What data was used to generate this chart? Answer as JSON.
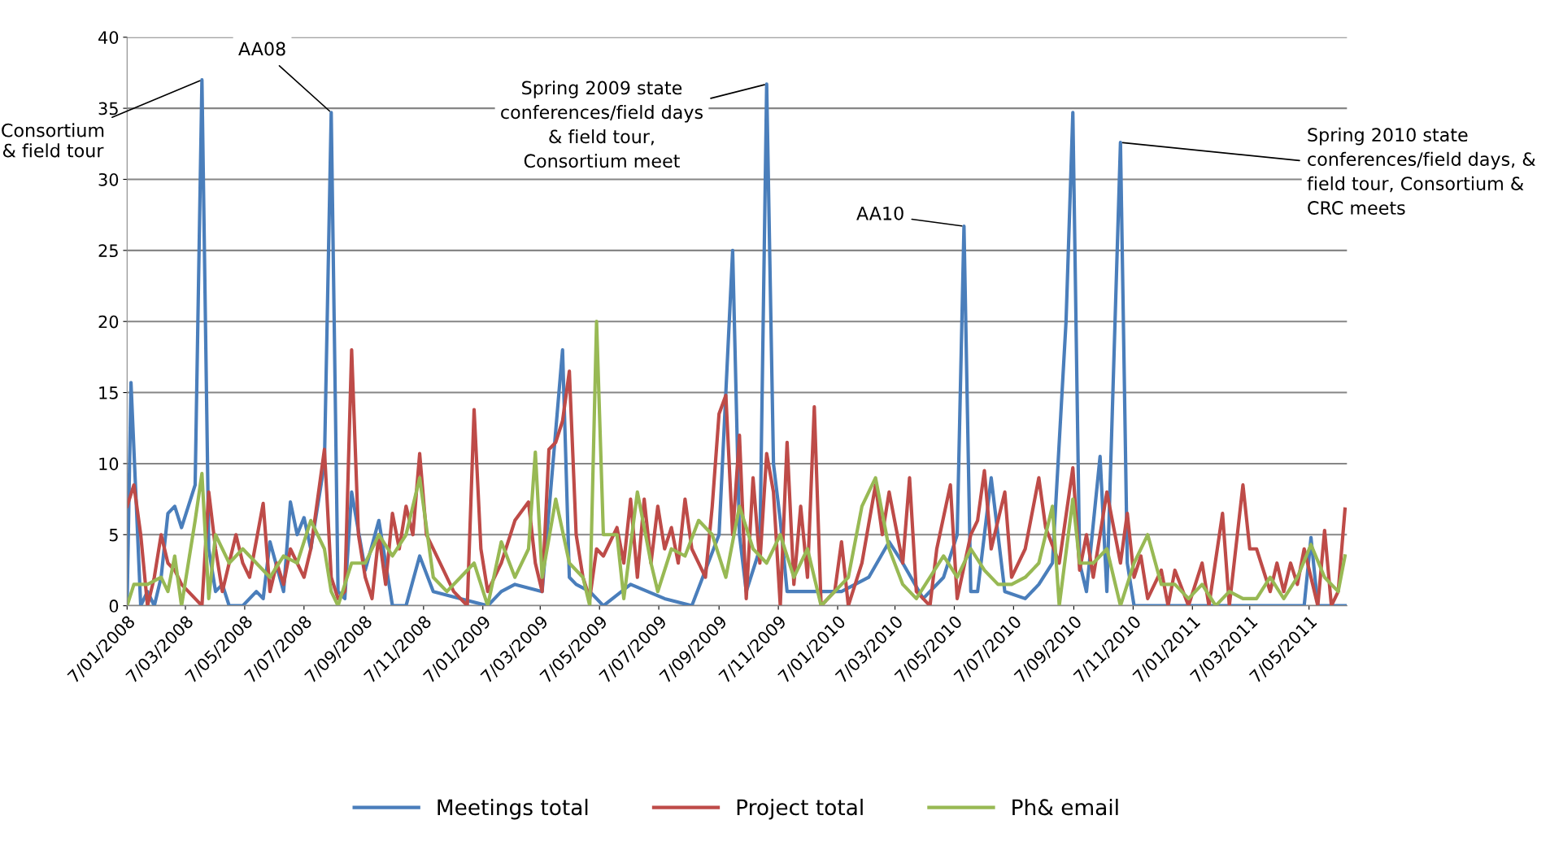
{
  "chart_data": {
    "type": "line",
    "xlim": [
      "2008-01-07",
      "2011-06-15"
    ],
    "xticks": [
      {
        "value": "2008-01-07",
        "label": "7/01/2008"
      },
      {
        "value": "2008-03-07",
        "label": "7/03/2008"
      },
      {
        "value": "2008-05-07",
        "label": "7/05/2008"
      },
      {
        "value": "2008-07-07",
        "label": "7/07/2008"
      },
      {
        "value": "2008-09-07",
        "label": "7/09/2008"
      },
      {
        "value": "2008-11-07",
        "label": "7/11/2008"
      },
      {
        "value": "2009-01-07",
        "label": "7/01/2009"
      },
      {
        "value": "2009-03-07",
        "label": "7/03/2009"
      },
      {
        "value": "2009-05-07",
        "label": "7/05/2009"
      },
      {
        "value": "2009-07-07",
        "label": "7/07/2009"
      },
      {
        "value": "2009-09-07",
        "label": "7/09/2009"
      },
      {
        "value": "2009-11-07",
        "label": "7/11/2009"
      },
      {
        "value": "2010-01-07",
        "label": "7/01/2010"
      },
      {
        "value": "2010-03-07",
        "label": "7/03/2010"
      },
      {
        "value": "2010-05-07",
        "label": "7/05/2010"
      },
      {
        "value": "2010-07-07",
        "label": "7/07/2010"
      },
      {
        "value": "2010-09-07",
        "label": "7/09/2010"
      },
      {
        "value": "2010-11-07",
        "label": "7/11/2010"
      },
      {
        "value": "2011-01-07",
        "label": "7/01/2011"
      },
      {
        "value": "2011-03-07",
        "label": "7/03/2011"
      },
      {
        "value": "2011-05-07",
        "label": "7/05/2011"
      }
    ],
    "ylim": [
      0,
      40
    ],
    "yticks": [
      0,
      5,
      10,
      15,
      20,
      25,
      30,
      35,
      40
    ],
    "grid": "y",
    "legend": "bottom",
    "marker": "none",
    "line_style": "solid",
    "series": [
      {
        "name": "Meetings total",
        "color": "#4a7ebb",
        "x": [
          "2008-01-07",
          "2008-01-11",
          "2008-01-21",
          "2008-01-28",
          "2008-02-04",
          "2008-02-11",
          "2008-02-18",
          "2008-02-25",
          "2008-03-03",
          "2008-03-10",
          "2008-03-17",
          "2008-03-24",
          "2008-03-31",
          "2008-04-07",
          "2008-04-14",
          "2008-04-21",
          "2008-05-05",
          "2008-05-19",
          "2008-05-26",
          "2008-06-02",
          "2008-06-16",
          "2008-06-23",
          "2008-06-30",
          "2008-07-07",
          "2008-07-14",
          "2008-07-28",
          "2008-08-04",
          "2008-08-11",
          "2008-08-18",
          "2008-08-25",
          "2008-09-08",
          "2008-09-22",
          "2008-10-06",
          "2008-10-20",
          "2008-11-03",
          "2008-11-17",
          "2008-12-15",
          "2009-01-12",
          "2009-01-26",
          "2009-02-09",
          "2009-03-09",
          "2009-03-30",
          "2009-04-06",
          "2009-04-13",
          "2009-04-27",
          "2009-05-11",
          "2009-06-08",
          "2009-07-13",
          "2009-08-10",
          "2009-09-07",
          "2009-09-21",
          "2009-09-28",
          "2009-10-05",
          "2009-10-19",
          "2009-10-26",
          "2009-11-02",
          "2009-11-09",
          "2009-11-16",
          "2009-12-14",
          "2010-01-11",
          "2010-02-08",
          "2010-03-01",
          "2010-03-15",
          "2010-04-05",
          "2010-04-26",
          "2010-05-10",
          "2010-05-17",
          "2010-05-24",
          "2010-05-31",
          "2010-06-14",
          "2010-06-28",
          "2010-07-19",
          "2010-08-02",
          "2010-08-16",
          "2010-08-30",
          "2010-09-06",
          "2010-09-13",
          "2010-09-20",
          "2010-10-04",
          "2010-10-11",
          "2010-10-25",
          "2010-11-01",
          "2010-11-08",
          "2011-05-02",
          "2011-05-09",
          "2011-05-16",
          "2011-06-13"
        ],
        "values": [
          0,
          15.7,
          0,
          1,
          0,
          2,
          6.5,
          7,
          5.5,
          7,
          8.5,
          37,
          4,
          1,
          1.5,
          0,
          0,
          1,
          0.5,
          4.5,
          1,
          7.3,
          5,
          6.2,
          4,
          10,
          34.7,
          1,
          0.5,
          8,
          2.5,
          6,
          0,
          0,
          3.5,
          1,
          0.5,
          0,
          1,
          1.5,
          1,
          18,
          2,
          1.5,
          1,
          0,
          1.5,
          0.5,
          0,
          5,
          25,
          5,
          1,
          4,
          36.7,
          10,
          6,
          1,
          1,
          1,
          2,
          4.5,
          3,
          0.5,
          2,
          5,
          26.7,
          1,
          1,
          9,
          1,
          0.5,
          1.5,
          3,
          20,
          34.7,
          3,
          1,
          10.5,
          1,
          32.6,
          3,
          0,
          0,
          4.8,
          0,
          0
        ]
      },
      {
        "name": "Project total",
        "color": "#be4b48",
        "x": [
          "2008-01-07",
          "2008-01-14",
          "2008-01-21",
          "2008-01-28",
          "2008-02-04",
          "2008-02-11",
          "2008-02-18",
          "2008-02-25",
          "2008-03-03",
          "2008-03-17",
          "2008-03-24",
          "2008-03-31",
          "2008-04-07",
          "2008-04-14",
          "2008-04-28",
          "2008-05-05",
          "2008-05-12",
          "2008-05-26",
          "2008-06-02",
          "2008-06-09",
          "2008-06-16",
          "2008-06-23",
          "2008-07-07",
          "2008-07-14",
          "2008-07-28",
          "2008-08-04",
          "2008-08-11",
          "2008-08-18",
          "2008-08-25",
          "2008-09-01",
          "2008-09-08",
          "2008-09-15",
          "2008-09-22",
          "2008-09-29",
          "2008-10-06",
          "2008-10-13",
          "2008-10-20",
          "2008-10-27",
          "2008-11-03",
          "2008-11-10",
          "2008-11-24",
          "2008-12-08",
          "2008-12-22",
          "2008-12-29",
          "2009-01-05",
          "2009-01-12",
          "2009-01-26",
          "2009-02-09",
          "2009-02-23",
          "2009-03-02",
          "2009-03-09",
          "2009-03-16",
          "2009-03-23",
          "2009-03-30",
          "2009-04-06",
          "2009-04-13",
          "2009-04-20",
          "2009-04-27",
          "2009-05-04",
          "2009-05-11",
          "2009-05-25",
          "2009-06-01",
          "2009-06-08",
          "2009-06-15",
          "2009-06-22",
          "2009-06-29",
          "2009-07-06",
          "2009-07-13",
          "2009-07-20",
          "2009-07-27",
          "2009-08-03",
          "2009-08-10",
          "2009-08-24",
          "2009-08-31",
          "2009-09-07",
          "2009-09-14",
          "2009-09-21",
          "2009-09-28",
          "2009-10-05",
          "2009-10-12",
          "2009-10-19",
          "2009-10-26",
          "2009-11-02",
          "2009-11-09",
          "2009-11-16",
          "2009-11-23",
          "2009-11-30",
          "2009-12-07",
          "2009-12-14",
          "2009-12-21",
          "2010-01-04",
          "2010-01-11",
          "2010-01-18",
          "2010-02-01",
          "2010-02-15",
          "2010-02-22",
          "2010-03-01",
          "2010-03-15",
          "2010-03-22",
          "2010-03-29",
          "2010-04-12",
          "2010-04-19",
          "2010-05-03",
          "2010-05-10",
          "2010-05-24",
          "2010-05-31",
          "2010-06-07",
          "2010-06-14",
          "2010-06-28",
          "2010-07-05",
          "2010-07-19",
          "2010-08-02",
          "2010-08-09",
          "2010-08-23",
          "2010-09-06",
          "2010-09-13",
          "2010-09-20",
          "2010-09-27",
          "2010-10-11",
          "2010-10-18",
          "2010-10-25",
          "2010-11-01",
          "2010-11-08",
          "2010-11-15",
          "2010-11-22",
          "2010-12-06",
          "2010-12-13",
          "2010-12-20",
          "2011-01-03",
          "2011-01-17",
          "2011-01-24",
          "2011-02-07",
          "2011-02-14",
          "2011-02-28",
          "2011-03-07",
          "2011-03-14",
          "2011-03-28",
          "2011-04-04",
          "2011-04-11",
          "2011-04-18",
          "2011-04-25",
          "2011-05-02",
          "2011-05-09",
          "2011-05-16",
          "2011-05-23",
          "2011-05-30",
          "2011-06-06",
          "2011-06-13"
        ],
        "values": [
          7,
          8.5,
          5,
          0,
          2,
          5,
          3,
          2.5,
          1.5,
          0.5,
          0,
          8,
          4,
          1,
          5,
          3,
          2,
          7.2,
          1,
          3,
          1.5,
          4,
          2,
          4,
          11,
          2,
          0.5,
          1,
          18,
          5,
          2,
          0.5,
          5,
          1.5,
          6.5,
          4,
          7,
          5,
          10.7,
          5,
          3,
          1,
          0,
          13.8,
          4,
          1,
          3,
          6,
          7.3,
          3,
          1,
          11,
          11.5,
          13,
          16.5,
          5,
          2,
          0.5,
          4,
          3.5,
          5.5,
          3,
          7.5,
          2,
          7.5,
          3,
          7,
          4,
          5.5,
          3,
          7.5,
          4,
          2,
          7,
          13.5,
          14.8,
          5,
          12,
          0.5,
          9,
          3,
          10.7,
          8,
          0,
          11.5,
          1.5,
          7,
          2,
          14,
          0,
          1,
          4.5,
          0,
          3,
          8.5,
          5,
          8,
          3,
          9,
          1,
          0,
          4,
          8.5,
          0.5,
          5,
          6,
          9.5,
          4,
          8,
          2,
          4,
          9,
          5.5,
          3,
          9.7,
          2.5,
          5,
          2,
          8,
          5.5,
          3,
          6.5,
          2,
          3.5,
          0.5,
          2.5,
          0,
          2.5,
          0,
          3,
          0,
          6.5,
          0,
          8.5,
          4,
          4,
          1,
          3,
          1,
          3,
          1.5,
          4,
          2,
          0,
          5.3,
          0,
          1,
          6.8
        ]
      },
      {
        "name": "Ph& email",
        "color": "#98b954",
        "x": [
          "2008-01-07",
          "2008-01-14",
          "2008-01-28",
          "2008-02-11",
          "2008-02-18",
          "2008-02-25",
          "2008-03-03",
          "2008-03-17",
          "2008-03-24",
          "2008-03-31",
          "2008-04-07",
          "2008-04-21",
          "2008-05-05",
          "2008-05-19",
          "2008-06-02",
          "2008-06-16",
          "2008-06-30",
          "2008-07-14",
          "2008-07-28",
          "2008-08-04",
          "2008-08-11",
          "2008-08-25",
          "2008-09-08",
          "2008-09-22",
          "2008-10-06",
          "2008-10-20",
          "2008-11-03",
          "2008-11-17",
          "2008-12-01",
          "2008-12-15",
          "2008-12-29",
          "2009-01-12",
          "2009-01-26",
          "2009-02-09",
          "2009-02-23",
          "2009-03-02",
          "2009-03-09",
          "2009-03-23",
          "2009-04-06",
          "2009-04-20",
          "2009-04-27",
          "2009-05-04",
          "2009-05-11",
          "2009-05-25",
          "2009-06-01",
          "2009-06-15",
          "2009-06-29",
          "2009-07-06",
          "2009-07-20",
          "2009-08-03",
          "2009-08-17",
          "2009-08-31",
          "2009-09-14",
          "2009-09-28",
          "2009-10-12",
          "2009-10-26",
          "2009-11-09",
          "2009-11-23",
          "2009-12-07",
          "2009-12-21",
          "2010-01-04",
          "2010-01-18",
          "2010-02-01",
          "2010-02-15",
          "2010-03-01",
          "2010-03-15",
          "2010-03-29",
          "2010-04-12",
          "2010-04-26",
          "2010-05-10",
          "2010-05-24",
          "2010-06-07",
          "2010-06-21",
          "2010-07-05",
          "2010-07-19",
          "2010-08-02",
          "2010-08-16",
          "2010-08-23",
          "2010-09-06",
          "2010-09-13",
          "2010-09-27",
          "2010-10-11",
          "2010-10-25",
          "2010-11-08",
          "2010-11-22",
          "2010-12-06",
          "2010-12-20",
          "2011-01-03",
          "2011-01-17",
          "2011-01-31",
          "2011-02-14",
          "2011-02-28",
          "2011-03-14",
          "2011-03-28",
          "2011-04-11",
          "2011-04-25",
          "2011-05-09",
          "2011-05-23",
          "2011-06-06",
          "2011-06-13"
        ],
        "values": [
          0,
          1.5,
          1.5,
          2,
          1,
          3.5,
          0,
          6,
          9.3,
          0.5,
          5,
          3,
          4,
          3,
          2,
          3.5,
          3,
          6,
          4,
          1,
          0,
          3,
          3,
          5,
          3.5,
          5,
          9,
          2,
          1,
          2,
          3,
          0,
          4.5,
          2,
          4,
          10.8,
          2,
          7.5,
          3,
          2,
          0,
          20,
          5,
          5,
          0.5,
          8,
          3,
          1,
          4,
          3.5,
          6,
          5,
          2,
          7,
          4,
          3,
          5,
          2,
          4,
          0,
          1,
          2,
          7,
          9,
          4,
          1.5,
          0.5,
          2,
          3.5,
          2,
          4,
          2.5,
          1.5,
          1.5,
          2,
          3,
          7,
          0,
          7.5,
          3,
          3,
          4,
          0,
          3,
          5,
          1.5,
          1.5,
          0.5,
          1.5,
          0,
          1,
          0.5,
          0.5,
          2,
          0.5,
          2,
          4.3,
          2,
          1,
          3.5
        ]
      }
    ],
    "annotations": [
      {
        "text": "Consortium\n& field tour",
        "x": "2008-03-24",
        "y": 37
      },
      {
        "text": "AA08",
        "x": "2008-08-04",
        "y": 34.7
      },
      {
        "text": "Spring 2009 state\nconferences/field days\n& field tour,\nConsortium meet",
        "x": "2009-10-26",
        "y": 36.7
      },
      {
        "text": "AA10",
        "x": "2010-05-17",
        "y": 26.7
      },
      {
        "text": "Spring 2010 state\nconferences/field days, &\nfield tour, Consortium &\nCRC meets",
        "x": "2010-10-25",
        "y": 32.6
      }
    ]
  }
}
